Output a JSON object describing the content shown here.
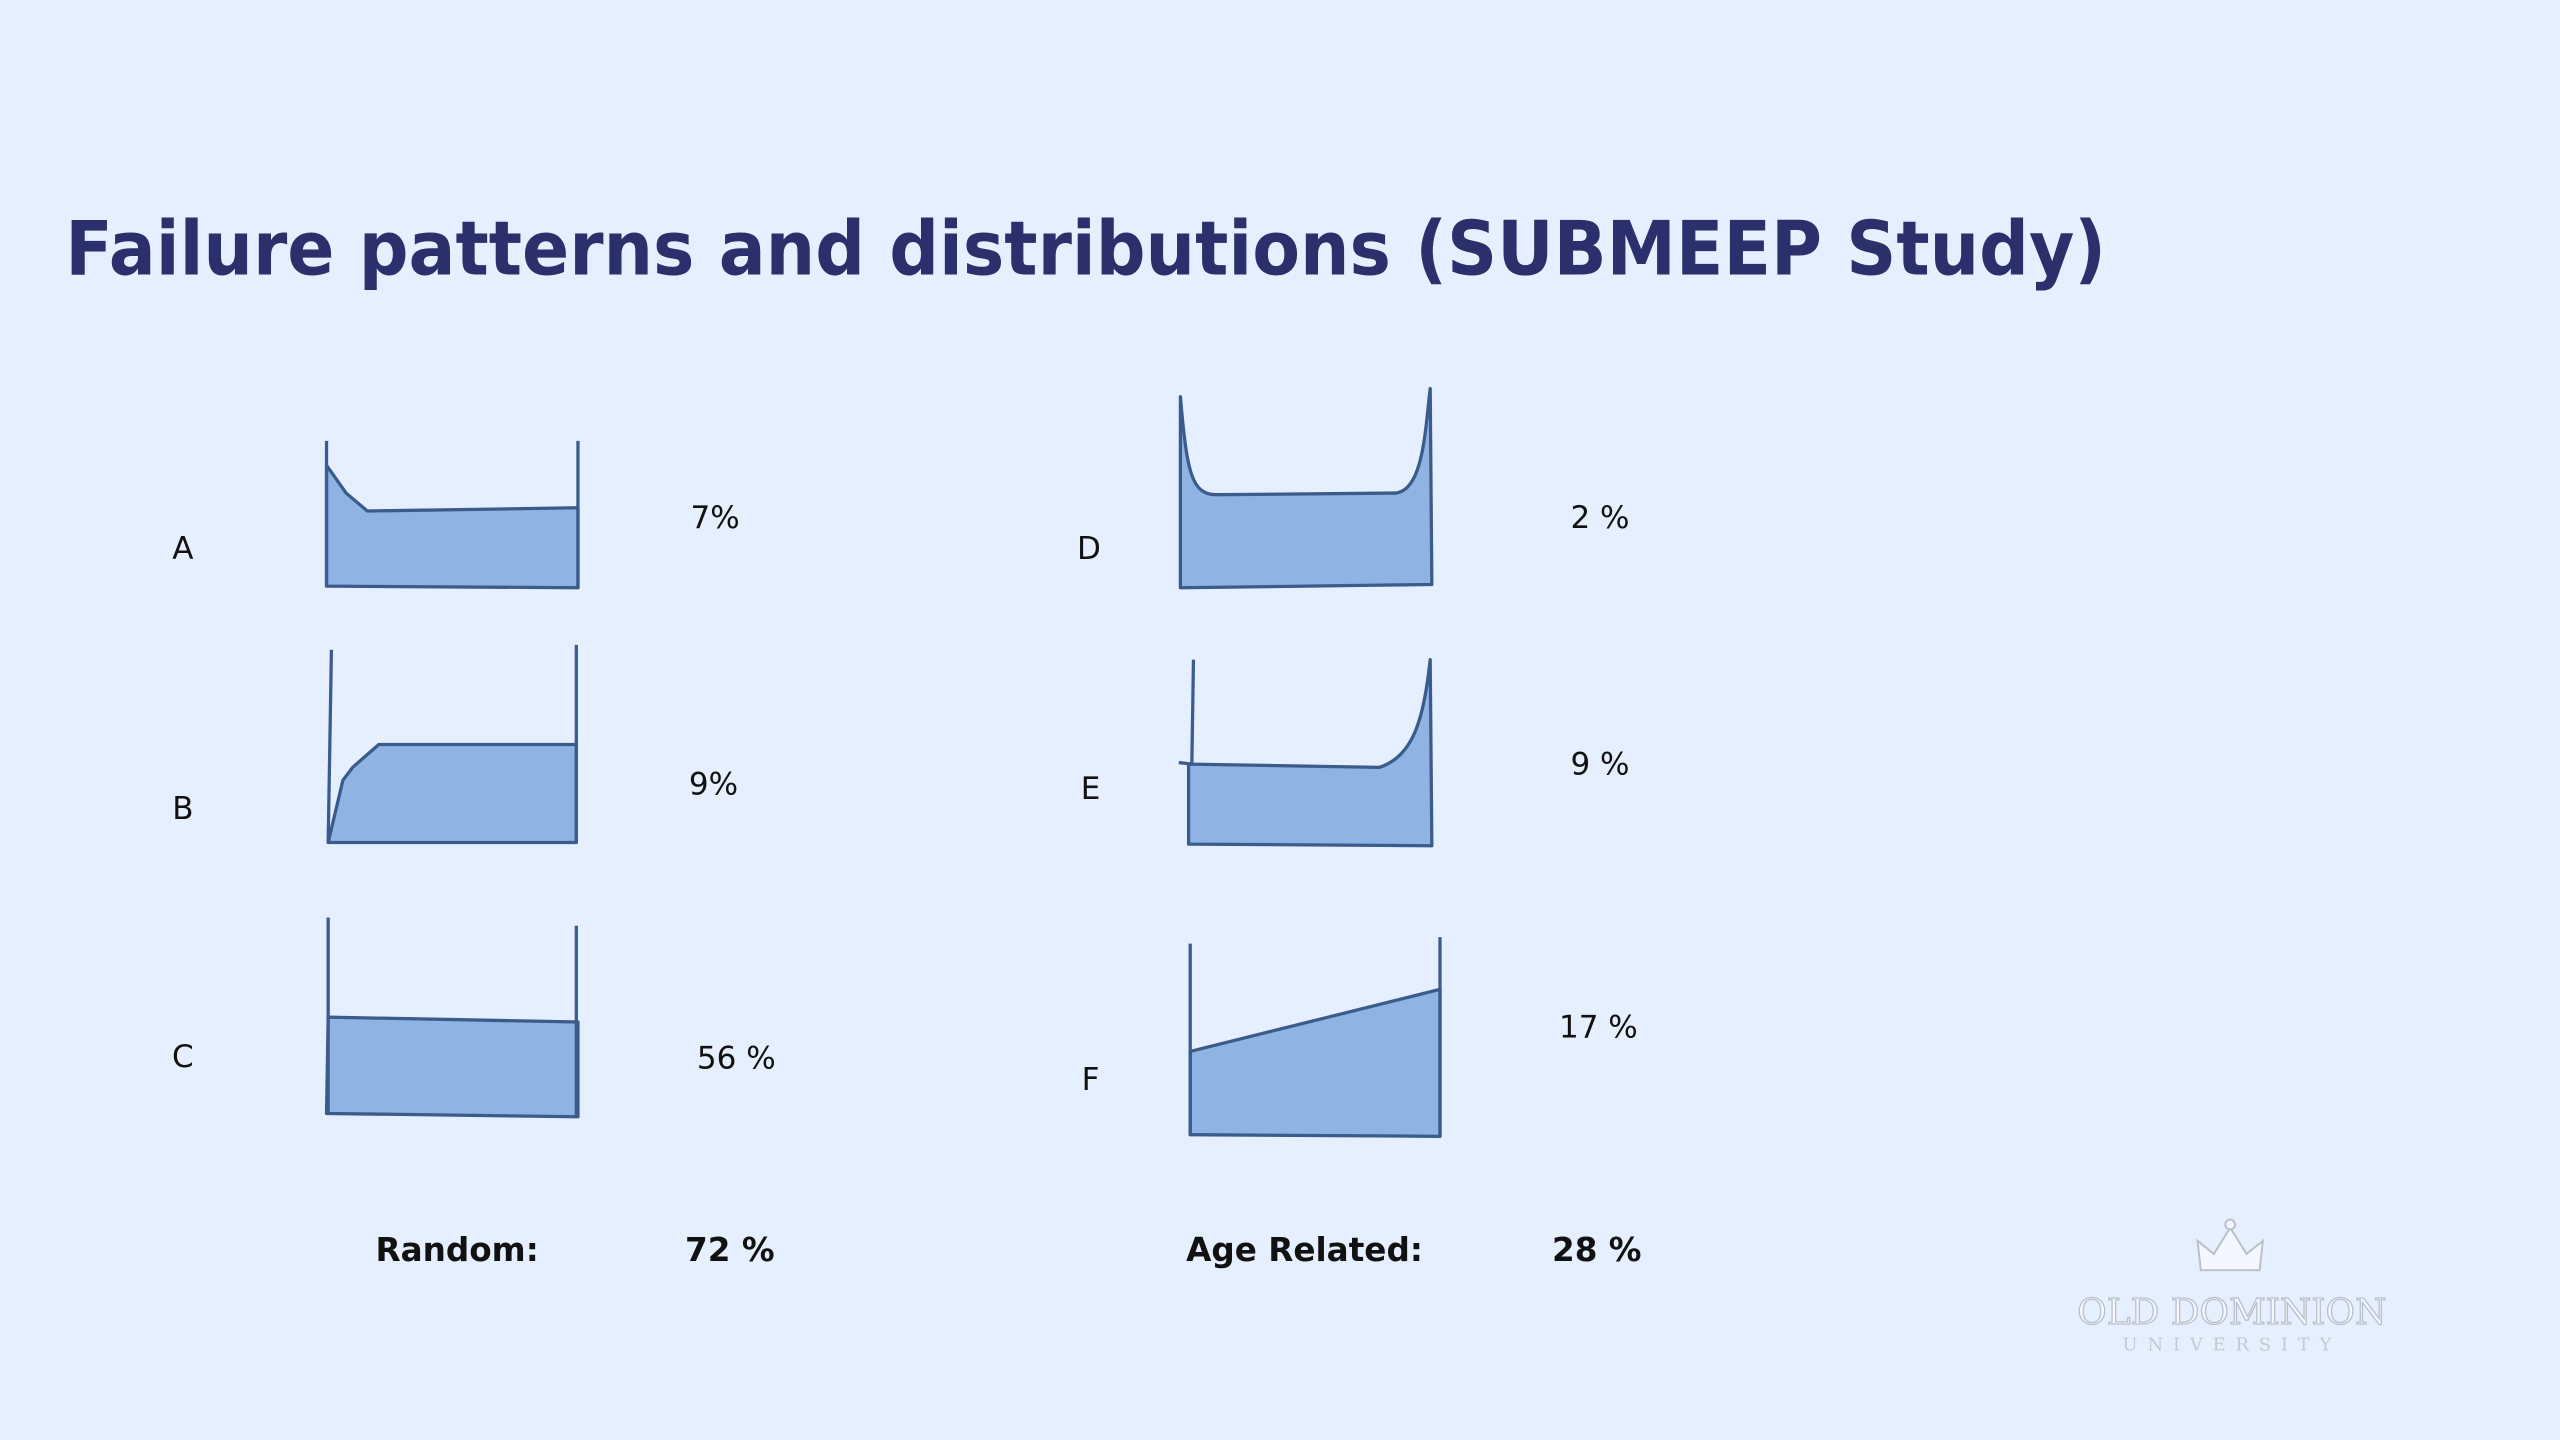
{
  "title": "Failure patterns and distributions (SUBMEEP Study)",
  "patterns": [
    {
      "label": "A",
      "share": "7%"
    },
    {
      "label": "B",
      "share": "9%"
    },
    {
      "label": "C",
      "share": "56 %"
    },
    {
      "label": "D",
      "share": "2 %"
    },
    {
      "label": "E",
      "share": "9 %"
    },
    {
      "label": "F",
      "share": "17 %"
    }
  ],
  "summary": [
    {
      "label": "Random:",
      "share": "72 %"
    },
    {
      "label": "Age Related:",
      "share": "28 %"
    }
  ],
  "logo": {
    "name": "OLD DOMINION",
    "subtitle": "UNIVERSITY"
  }
}
